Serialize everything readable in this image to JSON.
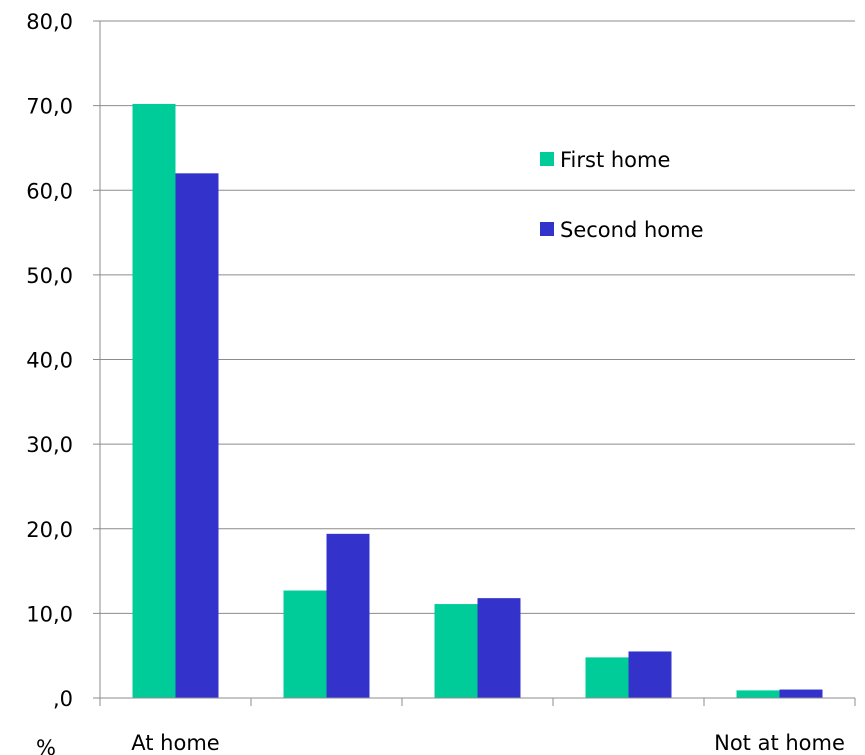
{
  "chart_data": {
    "type": "bar",
    "categories": [
      "At home",
      "",
      "",
      "",
      "Not at home"
    ],
    "series": [
      {
        "name": "First home",
        "color": "#00cc99",
        "values": [
          70.2,
          12.7,
          11.1,
          4.8,
          0.9
        ]
      },
      {
        "name": "Second home",
        "color": "#3333cc",
        "values": [
          62.0,
          19.4,
          11.8,
          5.5,
          1.0
        ]
      }
    ],
    "y_ticks": [
      ",0",
      "10,0",
      "20,0",
      "30,0",
      "40,0",
      "50,0",
      "60,0",
      "70,0",
      "80,0"
    ],
    "ylim": [
      0,
      80
    ],
    "ylabel": "%",
    "grid": true,
    "legend_position": "top-right"
  }
}
